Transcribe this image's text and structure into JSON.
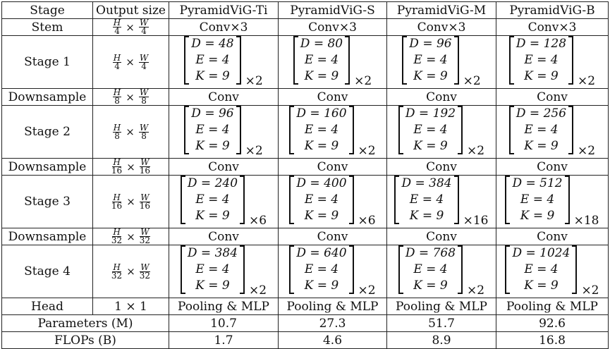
{
  "header": [
    "Stage",
    "Output size",
    "PyramidViG-Ti",
    "PyramidViG-S",
    "PyramidViG-M",
    "PyramidViG-B"
  ],
  "stem": {
    "label": "Stem",
    "size": {
      "num": [
        "H",
        "W"
      ],
      "den": [
        "4",
        "4"
      ]
    },
    "cells": [
      "Conv×3",
      "Conv×3",
      "Conv×3",
      "Conv×3"
    ]
  },
  "stages": [
    {
      "label": "Stage 1",
      "size": {
        "num": [
          "H",
          "W"
        ],
        "den": [
          "4",
          "4"
        ]
      },
      "cells": [
        {
          "D": "D = 48",
          "E": "E = 4",
          "K": "K = 9",
          "mult": "×2"
        },
        {
          "D": "D = 80",
          "E": "E = 4",
          "K": "K = 9",
          "mult": "×2"
        },
        {
          "D": "D = 96",
          "E": "E = 4",
          "K": "K = 9",
          "mult": "×2"
        },
        {
          "D": "D = 128",
          "E": "E = 4",
          "K": "K = 9",
          "mult": "×2"
        }
      ]
    },
    {
      "label": "Stage 2",
      "size": {
        "num": [
          "H",
          "W"
        ],
        "den": [
          "8",
          "8"
        ]
      },
      "cells": [
        {
          "D": "D = 96",
          "E": "E = 4",
          "K": "K = 9",
          "mult": "×2"
        },
        {
          "D": "D = 160",
          "E": "E = 4",
          "K": "K = 9",
          "mult": "×2"
        },
        {
          "D": "D = 192",
          "E": "E = 4",
          "K": "K = 9",
          "mult": "×2"
        },
        {
          "D": "D = 256",
          "E": "E = 4",
          "K": "K = 9",
          "mult": "×2"
        }
      ]
    },
    {
      "label": "Stage 3",
      "size": {
        "num": [
          "H",
          "W"
        ],
        "den": [
          "16",
          "16"
        ]
      },
      "cells": [
        {
          "D": "D = 240",
          "E": "E = 4",
          "K": "K = 9",
          "mult": "×6"
        },
        {
          "D": "D = 400",
          "E": "E = 4",
          "K": "K = 9",
          "mult": "×6"
        },
        {
          "D": "D = 384",
          "E": "E = 4",
          "K": "K = 9",
          "mult": "×16"
        },
        {
          "D": "D = 512",
          "E": "E = 4",
          "K": "K = 9",
          "mult": "×18"
        }
      ]
    },
    {
      "label": "Stage 4",
      "size": {
        "num": [
          "H",
          "W"
        ],
        "den": [
          "32",
          "32"
        ]
      },
      "cells": [
        {
          "D": "D = 384",
          "E": "E = 4",
          "K": "K = 9",
          "mult": "×2"
        },
        {
          "D": "D = 640",
          "E": "E = 4",
          "K": "K = 9",
          "mult": "×2"
        },
        {
          "D": "D = 768",
          "E": "E = 4",
          "K": "K = 9",
          "mult": "×2"
        },
        {
          "D": "D = 1024",
          "E": "E = 4",
          "K": "K = 9",
          "mult": "×2"
        }
      ]
    }
  ],
  "downsamples": [
    {
      "label": "Downsample",
      "size": {
        "num": [
          "H",
          "W"
        ],
        "den": [
          "8",
          "8"
        ]
      },
      "cells": [
        "Conv",
        "Conv",
        "Conv",
        "Conv"
      ]
    },
    {
      "label": "Downsample",
      "size": {
        "num": [
          "H",
          "W"
        ],
        "den": [
          "16",
          "16"
        ]
      },
      "cells": [
        "Conv",
        "Conv",
        "Conv",
        "Conv"
      ]
    },
    {
      "label": "Downsample",
      "size": {
        "num": [
          "H",
          "W"
        ],
        "den": [
          "32",
          "32"
        ]
      },
      "cells": [
        "Conv",
        "Conv",
        "Conv",
        "Conv"
      ]
    }
  ],
  "head": {
    "label": "Head",
    "size": "1 × 1",
    "cells": [
      "Pooling & MLP",
      "Pooling & MLP",
      "Pooling & MLP",
      "Pooling & MLP"
    ]
  },
  "params": {
    "label": "Parameters (M)",
    "cells": [
      "10.7",
      "27.3",
      "51.7",
      "92.6"
    ]
  },
  "flops": {
    "label": "FLOPs (B)",
    "cells": [
      "1.7",
      "4.6",
      "8.9",
      "16.8"
    ]
  },
  "times_symbol": "×"
}
